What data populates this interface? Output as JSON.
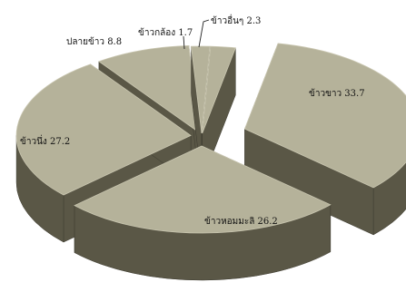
{
  "chart_data": {
    "type": "pie",
    "title": "",
    "categories": [
      "ข้าวขาว",
      "ข้าวหอมมะลิ",
      "ข้าวนึ่ง",
      "ปลายข้าว",
      "ข้าวกล้อง",
      "ข้าวอื่นๆ"
    ],
    "values": [
      33.7,
      26.2,
      27.2,
      8.8,
      1.7,
      2.3
    ],
    "labels": [
      "ข้าวขาว 33.7",
      "ข้าวหอมมะลิ 26.2",
      "ข้าวนึ่ง 27.2",
      "ปลายข้าว 8.8",
      "ข้าวกล้อง 1.7",
      "ข้าวอื่นๆ 2.3"
    ],
    "style": "3d-exploded",
    "legend": "none",
    "colors": {
      "top": "#b5b29a",
      "side": "#5a5746",
      "edge": "#c9c6b0"
    }
  }
}
